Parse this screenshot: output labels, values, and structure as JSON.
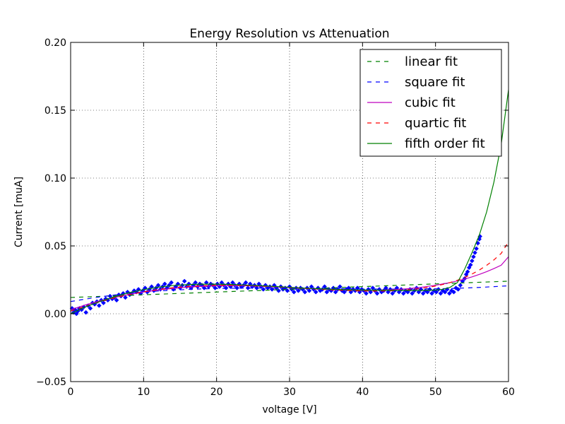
{
  "chart_data": {
    "type": "scatter",
    "title": "Energy Resolution vs Attenuation",
    "xlabel": "voltage [V]",
    "ylabel": "Current [muA]",
    "xlim": [
      0,
      60
    ],
    "ylim": [
      -0.05,
      0.2
    ],
    "xticks": [
      0,
      10,
      20,
      30,
      40,
      50,
      60
    ],
    "xtick_labels": [
      "0",
      "10",
      "20",
      "30",
      "40",
      "50",
      "60"
    ],
    "yticks": [
      -0.05,
      0.0,
      0.05,
      0.1,
      0.15,
      0.2
    ],
    "ytick_labels": [
      "−0.05",
      "0.00",
      "0.05",
      "0.10",
      "0.15",
      "0.20"
    ],
    "grid": true,
    "legend_position": "top-right",
    "colors": {
      "points": "#0000ff",
      "linear": "#008000",
      "square": "#0000ff",
      "cubic": "#bf00bf",
      "quartic": "#ff0000",
      "fifth": "#008000"
    },
    "scatter_points": [
      [
        0.2,
        0.004
      ],
      [
        0.4,
        0.001
      ],
      [
        0.6,
        0.003
      ],
      [
        0.8,
        0.0
      ],
      [
        1.0,
        0.002
      ],
      [
        1.2,
        0.004
      ],
      [
        1.5,
        0.003
      ],
      [
        1.8,
        0.005
      ],
      [
        2.1,
        0.001
      ],
      [
        2.4,
        0.006
      ],
      [
        2.7,
        0.004
      ],
      [
        3.0,
        0.008
      ],
      [
        3.3,
        0.007
      ],
      [
        3.6,
        0.009
      ],
      [
        3.9,
        0.006
      ],
      [
        4.2,
        0.01
      ],
      [
        4.5,
        0.008
      ],
      [
        4.8,
        0.011
      ],
      [
        5.1,
        0.01
      ],
      [
        5.4,
        0.013
      ],
      [
        5.7,
        0.011
      ],
      [
        6.0,
        0.012
      ],
      [
        6.3,
        0.01
      ],
      [
        6.6,
        0.014
      ],
      [
        6.9,
        0.013
      ],
      [
        7.2,
        0.015
      ],
      [
        7.5,
        0.012
      ],
      [
        7.8,
        0.016
      ],
      [
        8.1,
        0.014
      ],
      [
        8.4,
        0.015
      ],
      [
        8.7,
        0.017
      ],
      [
        9.0,
        0.016
      ],
      [
        9.3,
        0.018
      ],
      [
        9.6,
        0.015
      ],
      [
        9.9,
        0.017
      ],
      [
        10.2,
        0.019
      ],
      [
        10.5,
        0.016
      ],
      [
        10.8,
        0.018
      ],
      [
        11.1,
        0.02
      ],
      [
        11.4,
        0.017
      ],
      [
        11.7,
        0.019
      ],
      [
        12.0,
        0.021
      ],
      [
        12.3,
        0.018
      ],
      [
        12.6,
        0.02
      ],
      [
        12.9,
        0.022
      ],
      [
        13.2,
        0.019
      ],
      [
        13.5,
        0.021
      ],
      [
        13.8,
        0.023
      ],
      [
        14.1,
        0.018
      ],
      [
        14.4,
        0.02
      ],
      [
        14.7,
        0.022
      ],
      [
        15.0,
        0.019
      ],
      [
        15.3,
        0.021
      ],
      [
        15.6,
        0.024
      ],
      [
        15.9,
        0.02
      ],
      [
        16.2,
        0.022
      ],
      [
        16.5,
        0.019
      ],
      [
        16.8,
        0.021
      ],
      [
        17.1,
        0.023
      ],
      [
        17.4,
        0.02
      ],
      [
        17.7,
        0.022
      ],
      [
        18.0,
        0.021
      ],
      [
        18.3,
        0.019
      ],
      [
        18.6,
        0.023
      ],
      [
        18.9,
        0.02
      ],
      [
        19.2,
        0.022
      ],
      [
        19.5,
        0.021
      ],
      [
        19.8,
        0.019
      ],
      [
        20.1,
        0.022
      ],
      [
        20.4,
        0.02
      ],
      [
        20.7,
        0.023
      ],
      [
        21.0,
        0.021
      ],
      [
        21.3,
        0.019
      ],
      [
        21.6,
        0.022
      ],
      [
        21.9,
        0.02
      ],
      [
        22.2,
        0.023
      ],
      [
        22.5,
        0.021
      ],
      [
        22.8,
        0.019
      ],
      [
        23.1,
        0.022
      ],
      [
        23.4,
        0.02
      ],
      [
        23.7,
        0.021
      ],
      [
        24.0,
        0.023
      ],
      [
        24.3,
        0.019
      ],
      [
        24.6,
        0.022
      ],
      [
        24.9,
        0.02
      ],
      [
        25.2,
        0.021
      ],
      [
        25.5,
        0.019
      ],
      [
        25.8,
        0.022
      ],
      [
        26.1,
        0.02
      ],
      [
        26.4,
        0.018
      ],
      [
        26.7,
        0.021
      ],
      [
        27.0,
        0.019
      ],
      [
        27.3,
        0.02
      ],
      [
        27.6,
        0.018
      ],
      [
        27.9,
        0.021
      ],
      [
        28.2,
        0.019
      ],
      [
        28.5,
        0.017
      ],
      [
        28.8,
        0.02
      ],
      [
        29.1,
        0.018
      ],
      [
        29.4,
        0.019
      ],
      [
        29.7,
        0.017
      ],
      [
        30.0,
        0.02
      ],
      [
        30.3,
        0.018
      ],
      [
        30.6,
        0.016
      ],
      [
        30.9,
        0.019
      ],
      [
        31.2,
        0.017
      ],
      [
        31.5,
        0.019
      ],
      [
        31.8,
        0.018
      ],
      [
        32.1,
        0.016
      ],
      [
        32.4,
        0.019
      ],
      [
        32.7,
        0.017
      ],
      [
        33.0,
        0.02
      ],
      [
        33.3,
        0.018
      ],
      [
        33.6,
        0.016
      ],
      [
        33.9,
        0.019
      ],
      [
        34.2,
        0.017
      ],
      [
        34.5,
        0.018
      ],
      [
        34.8,
        0.02
      ],
      [
        35.1,
        0.016
      ],
      [
        35.4,
        0.018
      ],
      [
        35.7,
        0.017
      ],
      [
        36.0,
        0.019
      ],
      [
        36.3,
        0.016
      ],
      [
        36.6,
        0.018
      ],
      [
        36.9,
        0.02
      ],
      [
        37.2,
        0.017
      ],
      [
        37.5,
        0.016
      ],
      [
        37.8,
        0.018
      ],
      [
        38.1,
        0.019
      ],
      [
        38.4,
        0.016
      ],
      [
        38.7,
        0.018
      ],
      [
        39.0,
        0.017
      ],
      [
        39.3,
        0.019
      ],
      [
        39.6,
        0.016
      ],
      [
        39.9,
        0.018
      ],
      [
        40.2,
        0.017
      ],
      [
        40.5,
        0.015
      ],
      [
        40.8,
        0.018
      ],
      [
        41.1,
        0.016
      ],
      [
        41.4,
        0.019
      ],
      [
        41.7,
        0.017
      ],
      [
        42.0,
        0.015
      ],
      [
        42.3,
        0.018
      ],
      [
        42.6,
        0.016
      ],
      [
        42.9,
        0.017
      ],
      [
        43.2,
        0.019
      ],
      [
        43.5,
        0.016
      ],
      [
        43.8,
        0.018
      ],
      [
        44.1,
        0.015
      ],
      [
        44.4,
        0.017
      ],
      [
        44.7,
        0.019
      ],
      [
        45.0,
        0.016
      ],
      [
        45.3,
        0.018
      ],
      [
        45.6,
        0.015
      ],
      [
        45.9,
        0.017
      ],
      [
        46.2,
        0.016
      ],
      [
        46.5,
        0.018
      ],
      [
        46.8,
        0.015
      ],
      [
        47.1,
        0.017
      ],
      [
        47.4,
        0.019
      ],
      [
        47.7,
        0.016
      ],
      [
        48.0,
        0.018
      ],
      [
        48.3,
        0.015
      ],
      [
        48.6,
        0.017
      ],
      [
        48.9,
        0.016
      ],
      [
        49.2,
        0.018
      ],
      [
        49.5,
        0.015
      ],
      [
        49.8,
        0.017
      ],
      [
        50.1,
        0.016
      ],
      [
        50.4,
        0.018
      ],
      [
        50.7,
        0.015
      ],
      [
        51.0,
        0.017
      ],
      [
        51.3,
        0.016
      ],
      [
        51.6,
        0.018
      ],
      [
        51.9,
        0.015
      ],
      [
        52.2,
        0.017
      ],
      [
        52.5,
        0.016
      ],
      [
        52.8,
        0.019
      ],
      [
        53.1,
        0.018
      ],
      [
        53.4,
        0.021
      ],
      [
        53.7,
        0.024
      ],
      [
        54.0,
        0.026
      ],
      [
        54.2,
        0.029
      ],
      [
        54.4,
        0.031
      ],
      [
        54.6,
        0.034
      ],
      [
        54.8,
        0.036
      ],
      [
        55.0,
        0.039
      ],
      [
        55.2,
        0.042
      ],
      [
        55.4,
        0.045
      ],
      [
        55.6,
        0.048
      ],
      [
        55.8,
        0.052
      ],
      [
        56.0,
        0.055
      ],
      [
        56.1,
        0.057
      ]
    ],
    "fit_x": [
      0,
      2,
      4,
      6,
      8,
      10,
      12,
      14,
      16,
      18,
      20,
      22,
      24,
      26,
      28,
      30,
      32,
      34,
      36,
      38,
      40,
      42,
      44,
      46,
      48,
      50,
      51,
      52,
      53,
      54,
      55,
      56,
      57,
      58,
      59,
      60
    ],
    "series": [
      {
        "name": "linear fit",
        "style": "dashed",
        "color_key": "linear",
        "values": [
          0.012,
          0.0124,
          0.0128,
          0.0132,
          0.0136,
          0.014,
          0.0144,
          0.0148,
          0.0152,
          0.0156,
          0.016,
          0.0164,
          0.0168,
          0.0172,
          0.0176,
          0.018,
          0.0184,
          0.0188,
          0.0192,
          0.0196,
          0.02,
          0.0204,
          0.0208,
          0.0212,
          0.0216,
          0.022,
          0.0222,
          0.0224,
          0.0226,
          0.0228,
          0.023,
          0.0232,
          0.0234,
          0.0236,
          0.0238,
          0.024
        ]
      },
      {
        "name": "square fit",
        "style": "dashed",
        "color_key": "square",
        "values": [
          0.009,
          0.0108,
          0.0124,
          0.0138,
          0.015,
          0.016,
          0.0168,
          0.0174,
          0.0179,
          0.0183,
          0.0186,
          0.0188,
          0.0189,
          0.0189,
          0.0189,
          0.0188,
          0.0187,
          0.0186,
          0.0185,
          0.0184,
          0.0183,
          0.0182,
          0.0182,
          0.0182,
          0.0183,
          0.0184,
          0.0185,
          0.0186,
          0.0188,
          0.019,
          0.0192,
          0.0194,
          0.0197,
          0.02,
          0.0203,
          0.0206
        ]
      },
      {
        "name": "cubic fit",
        "style": "solid",
        "color_key": "cubic",
        "values": [
          0.003,
          0.0065,
          0.0095,
          0.012,
          0.0142,
          0.016,
          0.0175,
          0.0187,
          0.0196,
          0.0202,
          0.0206,
          0.0207,
          0.0206,
          0.0203,
          0.0199,
          0.0194,
          0.0188,
          0.0183,
          0.0178,
          0.0175,
          0.0173,
          0.0174,
          0.0177,
          0.0184,
          0.0195,
          0.021,
          0.022,
          0.023,
          0.0242,
          0.0256,
          0.0272,
          0.029,
          0.031,
          0.0333,
          0.0358,
          0.042
        ]
      },
      {
        "name": "quartic fit",
        "style": "dashed",
        "color_key": "quartic",
        "values": [
          0.002,
          0.0055,
          0.0088,
          0.0117,
          0.0141,
          0.0162,
          0.0179,
          0.0192,
          0.0201,
          0.0207,
          0.021,
          0.021,
          0.0208,
          0.0204,
          0.0199,
          0.0193,
          0.0187,
          0.0181,
          0.0175,
          0.0171,
          0.0168,
          0.0167,
          0.0169,
          0.0175,
          0.0186,
          0.0204,
          0.0216,
          0.023,
          0.0247,
          0.0268,
          0.0293,
          0.0322,
          0.0357,
          0.0397,
          0.0445,
          0.053
        ]
      },
      {
        "name": "fifth order fit",
        "style": "solid",
        "color_key": "fifth",
        "values": [
          0.0,
          0.005,
          0.009,
          0.0125,
          0.0155,
          0.0178,
          0.0196,
          0.0208,
          0.0215,
          0.0218,
          0.0218,
          0.0216,
          0.0212,
          0.0207,
          0.0201,
          0.0195,
          0.0189,
          0.0184,
          0.018,
          0.0177,
          0.0175,
          0.0174,
          0.0173,
          0.0172,
          0.0172,
          0.0175,
          0.018,
          0.0195,
          0.023,
          0.033,
          0.045,
          0.058,
          0.075,
          0.097,
          0.125,
          0.165
        ]
      }
    ]
  }
}
